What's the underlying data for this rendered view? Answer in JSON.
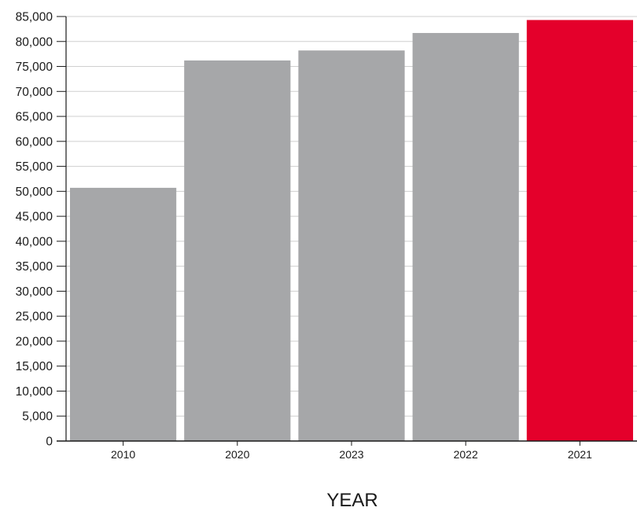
{
  "chart_data": {
    "type": "bar",
    "categories": [
      "2010",
      "2020",
      "2023",
      "2022",
      "2021"
    ],
    "values": [
      50700,
      76200,
      78200,
      81700,
      84300
    ],
    "colors": [
      "#a6a7a9",
      "#a6a7a9",
      "#a6a7a9",
      "#a6a7a9",
      "#e4002b"
    ],
    "xlabel": "YEAR",
    "ylabel": "",
    "ylim": [
      0,
      85000
    ],
    "y_ticks": [
      0,
      5000,
      10000,
      15000,
      20000,
      25000,
      30000,
      35000,
      40000,
      45000,
      50000,
      55000,
      60000,
      65000,
      70000,
      75000,
      80000,
      85000
    ],
    "y_tick_labels": [
      "0",
      "5,000",
      "10,000",
      "15,000",
      "20,000",
      "25,000",
      "30,000",
      "35,000",
      "40,000",
      "45,000",
      "50,000",
      "55,000",
      "60,000",
      "65,000",
      "70,000",
      "75,000",
      "80,000",
      "85,000"
    ],
    "grid": true,
    "gridline_color": "#cfcfcf",
    "axis_color": "#1a1a1a"
  }
}
